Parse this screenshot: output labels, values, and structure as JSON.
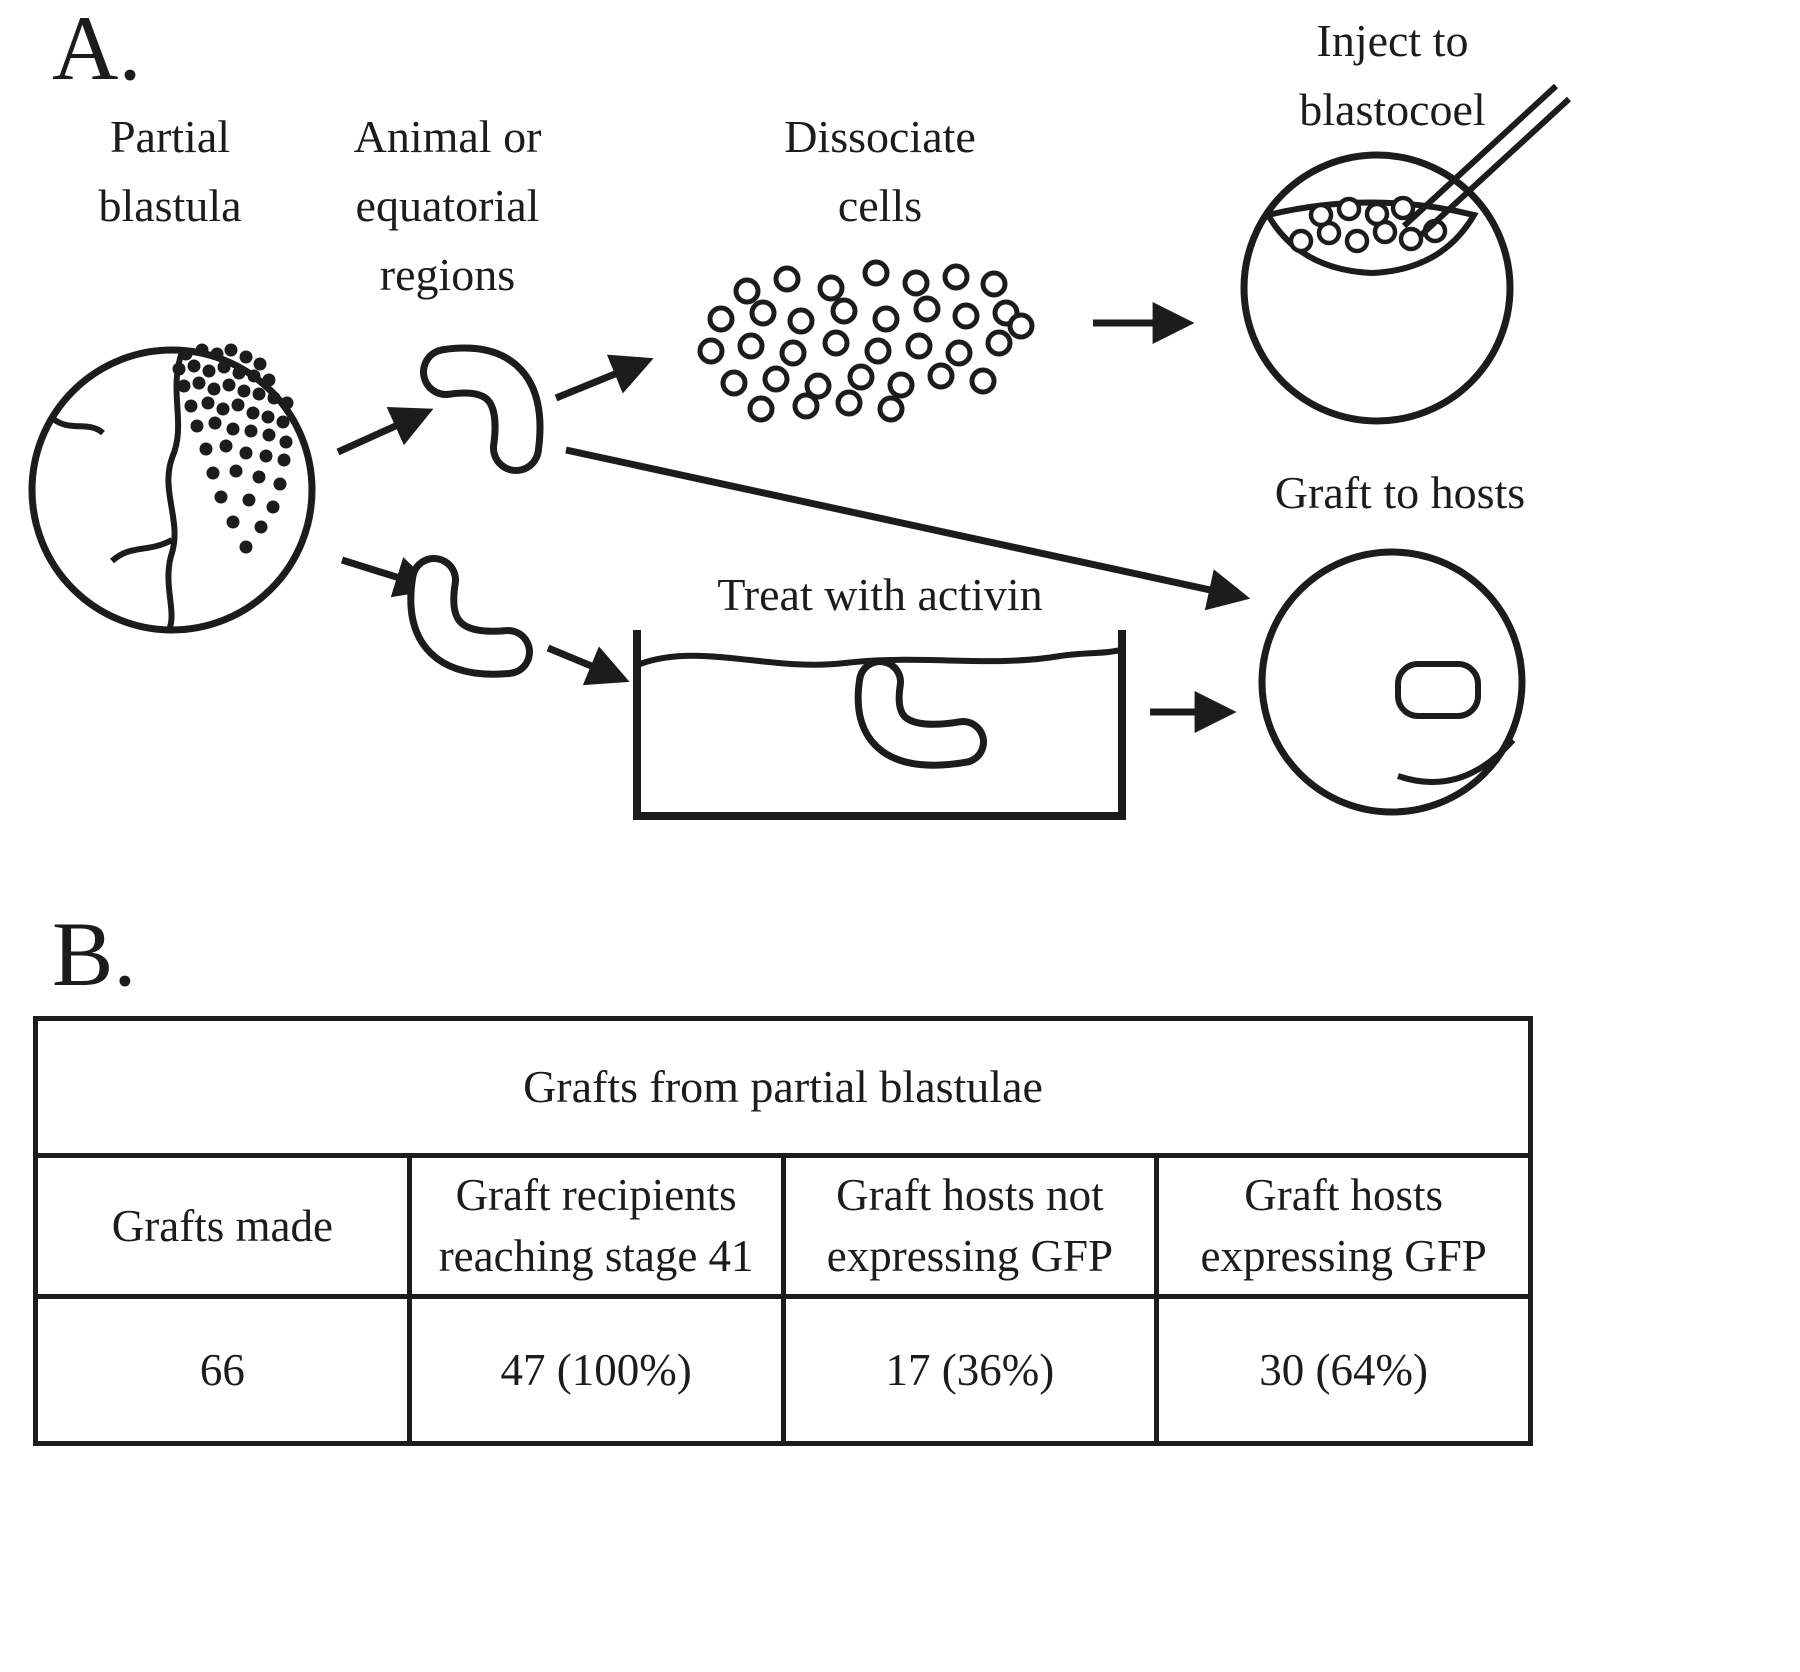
{
  "panel_a": {
    "label": "A.",
    "captions": {
      "partial_blastula": "Partial\nblastula",
      "animal_or_equatorial": "Animal or\nequatorial\nregions",
      "dissociate_cells": "Dissociate\ncells",
      "inject_to_blastocoel": "Inject to\nblastocoel",
      "graft_to_hosts": "Graft to hosts",
      "treat_with_activin": "Treat with activin"
    }
  },
  "panel_b": {
    "label": "B.",
    "table": {
      "title": "Grafts from partial blastulae",
      "columns": [
        "Grafts made",
        "Graft recipients\nreaching stage 41",
        "Graft hosts not\nexpressing GFP",
        "Graft hosts\nexpressing GFP"
      ],
      "values": [
        "66",
        "47 (100%)",
        "17 (36%)",
        "30 (64%)"
      ]
    }
  },
  "colors": {
    "ink": "#1c1c1c",
    "background": "#ffffff"
  }
}
